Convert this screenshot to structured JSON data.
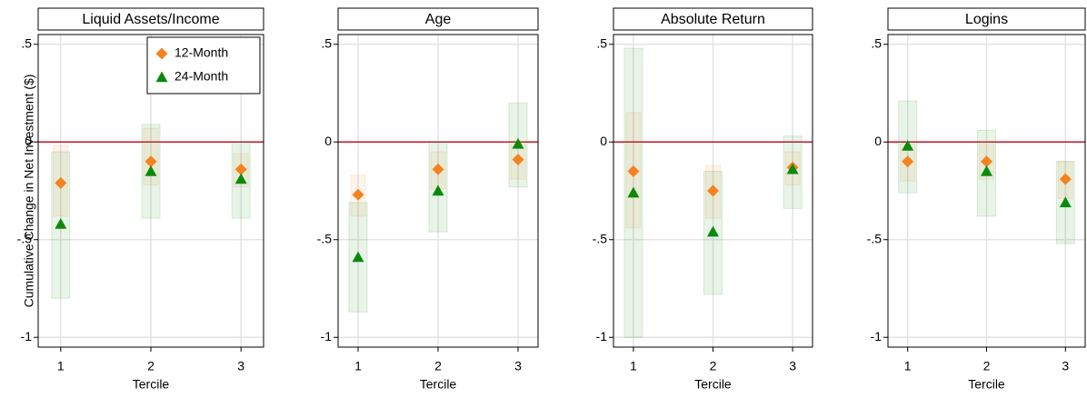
{
  "chart_data": [
    {
      "type": "scatter",
      "title": "Liquid Assets/Income",
      "x_label": "Tercile",
      "y_label": "Cumulative Change in Net Investment ($)",
      "x": [
        1,
        2,
        3
      ],
      "xlim": [
        0.75,
        3.25
      ],
      "xticks": [
        1,
        2,
        3
      ],
      "ylim": [
        -1.05,
        0.55
      ],
      "yticks": [
        {
          "value": 0.5,
          "label": ".5"
        },
        0,
        {
          "value": -0.5,
          "label": "-.5"
        },
        -1
      ],
      "grid": true,
      "hline": 0,
      "hline_color": "#c8102e",
      "legend": "top-right",
      "series": [
        {
          "name": "12-Month",
          "color": "#f58220",
          "marker": "diamond",
          "values": [
            -0.21,
            -0.1,
            -0.14
          ],
          "lower": [
            -0.38,
            -0.22,
            -0.23
          ],
          "upper": [
            -0.02,
            0.07,
            -0.06
          ]
        },
        {
          "name": "24-Month",
          "color": "#0a8a0a",
          "marker": "triangle",
          "values": [
            -0.42,
            -0.15,
            -0.19
          ],
          "lower": [
            -0.8,
            -0.39,
            -0.39
          ],
          "upper": [
            -0.05,
            0.09,
            0
          ]
        }
      ]
    },
    {
      "type": "scatter",
      "title": "Age",
      "x_label": "Tercile",
      "x": [
        1,
        2,
        3
      ],
      "xlim": [
        0.75,
        3.25
      ],
      "xticks": [
        1,
        2,
        3
      ],
      "ylim": [
        -1.05,
        0.55
      ],
      "yticks": [
        {
          "value": 0.5,
          "label": ".5"
        },
        0,
        {
          "value": -0.5,
          "label": "-.5"
        },
        -1
      ],
      "grid": true,
      "hline": 0,
      "hline_color": "#c8102e",
      "series": [
        {
          "color": "#f58220",
          "marker": "diamond",
          "values": [
            -0.27,
            -0.14,
            -0.09
          ],
          "lower": [
            -0.38,
            -0.24,
            -0.19
          ],
          "upper": [
            -0.17,
            -0.05,
            0
          ]
        },
        {
          "color": "#0a8a0a",
          "marker": "triangle",
          "values": [
            -0.59,
            -0.25,
            -0.01
          ],
          "lower": [
            -0.87,
            -0.46,
            -0.23
          ],
          "upper": [
            -0.31,
            0,
            0.2
          ]
        }
      ]
    },
    {
      "type": "scatter",
      "title": "Absolute Return",
      "x_label": "Tercile",
      "x": [
        1,
        2,
        3
      ],
      "xlim": [
        0.75,
        3.25
      ],
      "xticks": [
        1,
        2,
        3
      ],
      "ylim": [
        -1.05,
        0.55
      ],
      "yticks": [
        {
          "value": 0.5,
          "label": ".5"
        },
        0,
        {
          "value": -0.5,
          "label": "-.5"
        },
        -1
      ],
      "grid": true,
      "hline": 0,
      "hline_color": "#c8102e",
      "series": [
        {
          "color": "#f58220",
          "marker": "diamond",
          "values": [
            -0.15,
            -0.25,
            -0.13
          ],
          "lower": [
            -0.44,
            -0.39,
            -0.22
          ],
          "upper": [
            0.15,
            -0.12,
            -0.05
          ]
        },
        {
          "color": "#0a8a0a",
          "marker": "triangle",
          "values": [
            -0.26,
            -0.46,
            -0.14
          ],
          "lower": [
            -1.0,
            -0.78,
            -0.34
          ],
          "upper": [
            0.48,
            -0.15,
            0.03
          ]
        }
      ]
    },
    {
      "type": "scatter",
      "title": "Logins",
      "x_label": "Tercile",
      "x": [
        1,
        2,
        3
      ],
      "xlim": [
        0.75,
        3.25
      ],
      "xticks": [
        1,
        2,
        3
      ],
      "ylim": [
        -1.05,
        0.55
      ],
      "yticks": [
        {
          "value": 0.5,
          "label": ".5"
        },
        0,
        {
          "value": -0.5,
          "label": "-.5"
        },
        -1
      ],
      "grid": true,
      "hline": 0,
      "hline_color": "#c8102e",
      "series": [
        {
          "color": "#f58220",
          "marker": "diamond",
          "values": [
            -0.1,
            -0.1,
            -0.19
          ],
          "lower": [
            -0.2,
            -0.19,
            -0.29
          ],
          "upper": [
            -0.01,
            0,
            -0.1
          ]
        },
        {
          "color": "#0a8a0a",
          "marker": "triangle",
          "values": [
            -0.02,
            -0.15,
            -0.31
          ],
          "lower": [
            -0.26,
            -0.38,
            -0.52
          ],
          "upper": [
            0.21,
            0.06,
            -0.1
          ]
        }
      ]
    }
  ]
}
